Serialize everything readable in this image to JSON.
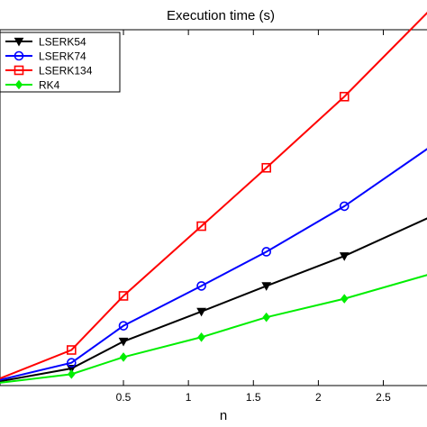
{
  "chart_data": {
    "type": "line",
    "title": "Execution time (s)",
    "xlabel": "n",
    "ylabel": "",
    "xlim": [
      -0.45,
      2.85
    ],
    "ylim": [
      0,
      2.5
    ],
    "xticks": [
      0.5,
      1,
      1.5,
      2,
      2.5
    ],
    "xtick_labels": [
      "0.5",
      "1",
      "1.5",
      "2",
      "2.5"
    ],
    "grid": false,
    "legend_position": "top-left",
    "series": [
      {
        "name": "LSERK54",
        "color": "#000000",
        "marker": "triangle-down",
        "x": [
          -0.45,
          0.1,
          0.5,
          1.1,
          1.6,
          2.2,
          2.85
        ],
        "y": [
          0.03,
          0.12,
          0.31,
          0.52,
          0.7,
          0.91,
          1.18
        ]
      },
      {
        "name": "LSERK74",
        "color": "#0000ff",
        "marker": "circle",
        "x": [
          -0.45,
          0.1,
          0.5,
          1.1,
          1.6,
          2.2,
          2.85
        ],
        "y": [
          0.04,
          0.16,
          0.42,
          0.7,
          0.94,
          1.26,
          1.67
        ]
      },
      {
        "name": "LSERK134",
        "color": "#ff0000",
        "marker": "square",
        "x": [
          -0.45,
          0.1,
          0.5,
          1.1,
          1.6,
          2.2,
          2.85
        ],
        "y": [
          0.05,
          0.25,
          0.63,
          1.12,
          1.53,
          2.03,
          2.63
        ]
      },
      {
        "name": "RK4",
        "color": "#00ee00",
        "marker": "diamond",
        "x": [
          -0.45,
          0.1,
          0.5,
          1.1,
          1.6,
          2.2,
          2.85
        ],
        "y": [
          0.02,
          0.08,
          0.2,
          0.34,
          0.48,
          0.61,
          0.78
        ]
      }
    ]
  }
}
